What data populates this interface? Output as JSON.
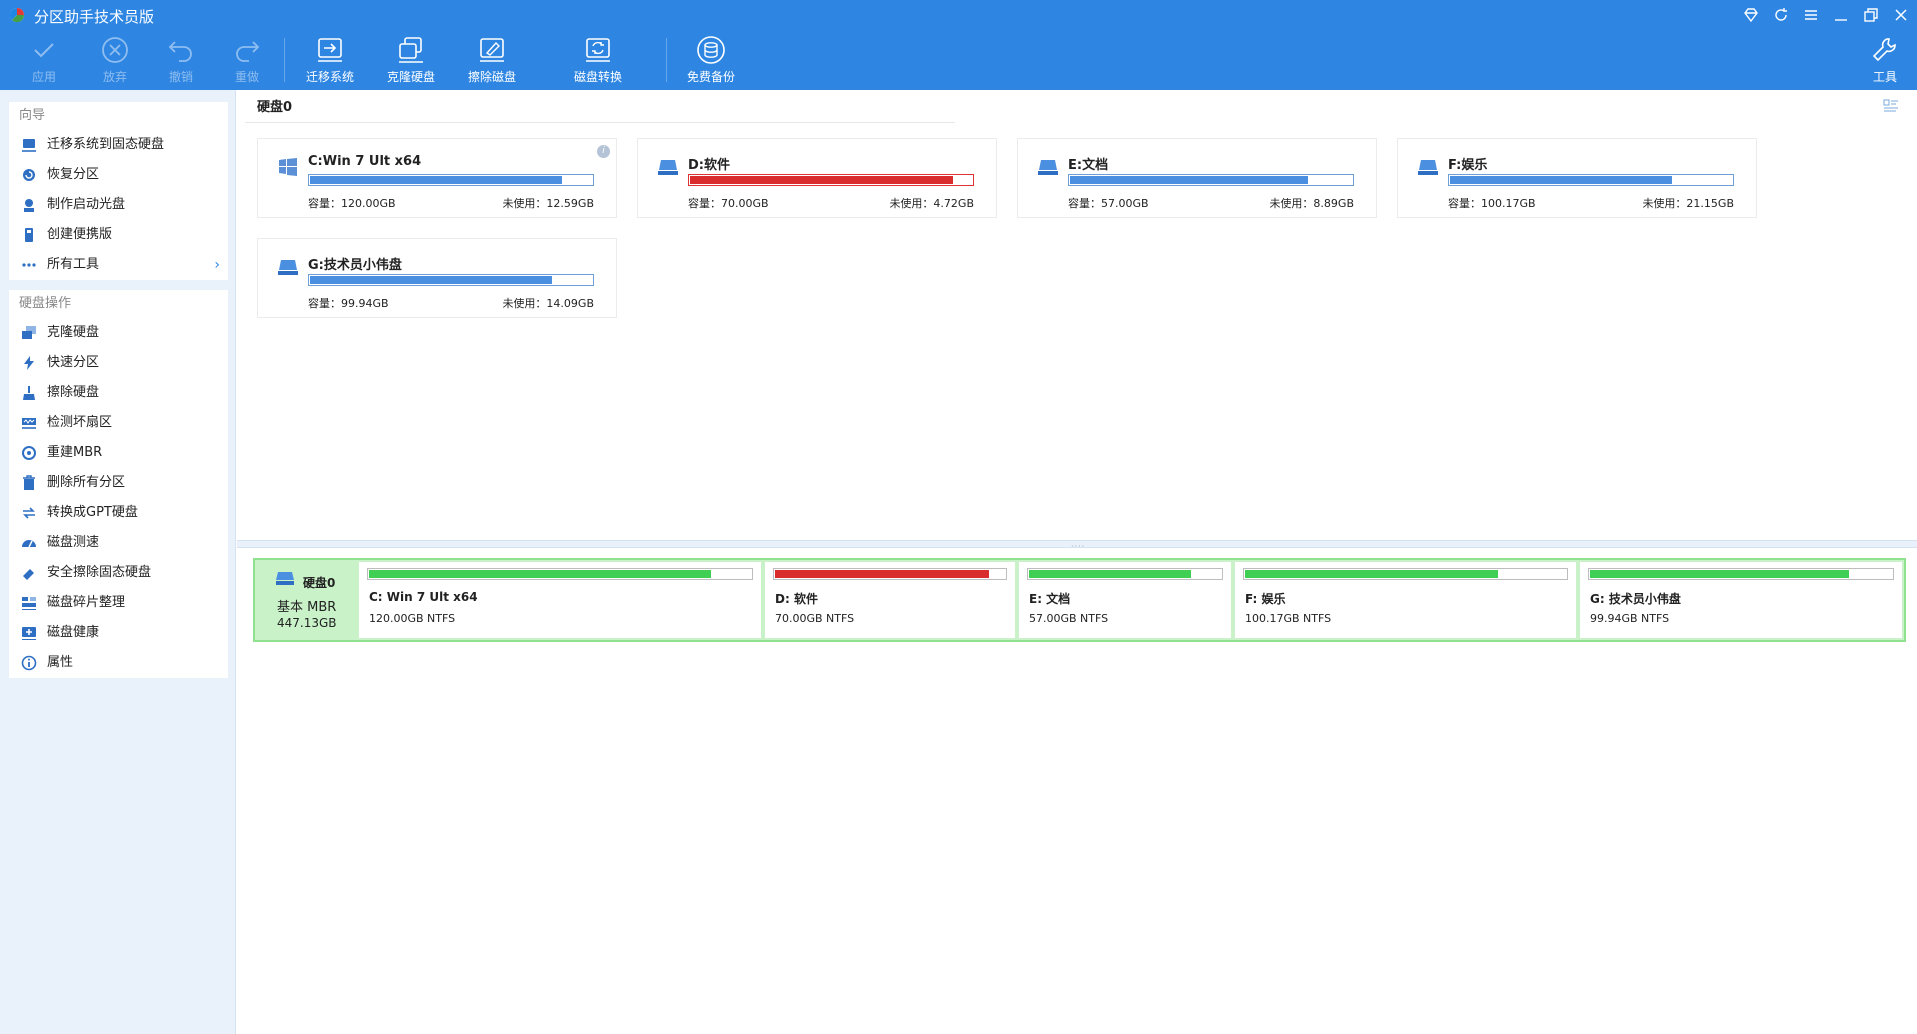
{
  "window": {
    "title": "分区助手技术员版"
  },
  "toolbar": {
    "apply": "应用",
    "discard": "放弃",
    "undo": "撤销",
    "redo": "重做",
    "migrate": "迁移系统",
    "clone": "克隆硬盘",
    "wipe": "擦除磁盘",
    "convert": "磁盘转换",
    "backup": "免费备份",
    "tools": "工具"
  },
  "sidebar": {
    "wizard_title": "向导",
    "wizard_items": [
      "迁移系统到固态硬盘",
      "恢复分区",
      "制作启动光盘",
      "创建便携版",
      "所有工具"
    ],
    "ops_title": "硬盘操作",
    "ops_items": [
      "克隆硬盘",
      "快速分区",
      "擦除硬盘",
      "检测坏扇区",
      "重建MBR",
      "删除所有分区",
      "转换成GPT硬盘",
      "磁盘测速",
      "安全擦除固态硬盘",
      "磁盘碎片整理",
      "磁盘健康",
      "属性"
    ]
  },
  "disk": {
    "label": "硬盘0",
    "type": "基本 MBR",
    "size": "447.13GB",
    "partitions": [
      {
        "name": "C:Win 7 Ult x64",
        "map_name": "C: Win 7 Ult x64",
        "capacity": "容量：120.00GB",
        "free": "未使用：12.59GB",
        "fs": "120.00GB NTFS",
        "used_fraction": 0.895,
        "alert": false
      },
      {
        "name": "D:软件",
        "map_name": "D: 软件",
        "capacity": "容量：70.00GB",
        "free": "未使用：4.72GB",
        "fs": "70.00GB NTFS",
        "used_fraction": 0.933,
        "alert": true
      },
      {
        "name": "E:文档",
        "map_name": "E: 文档",
        "capacity": "容量：57.00GB",
        "free": "未使用：8.89GB",
        "fs": "57.00GB NTFS",
        "used_fraction": 0.844,
        "alert": false
      },
      {
        "name": "F:娱乐",
        "map_name": "F: 娱乐",
        "capacity": "容量：100.17GB",
        "free": "未使用：21.15GB",
        "fs": "100.17GB NTFS",
        "used_fraction": 0.789,
        "alert": false
      },
      {
        "name": "G:技术员小伟盘",
        "map_name": "G: 技术员小伟盘",
        "capacity": "容量：99.94GB",
        "free": "未使用：14.09GB",
        "fs": "99.94GB NTFS",
        "used_fraction": 0.859,
        "alert": false
      }
    ]
  },
  "colors": {
    "accent": "#2e86e2",
    "used_bar": "#4a8fe0",
    "alert_bar": "#d92d2d",
    "map_bar": "#3fcf55",
    "map_bg": "#c9f2c9"
  }
}
